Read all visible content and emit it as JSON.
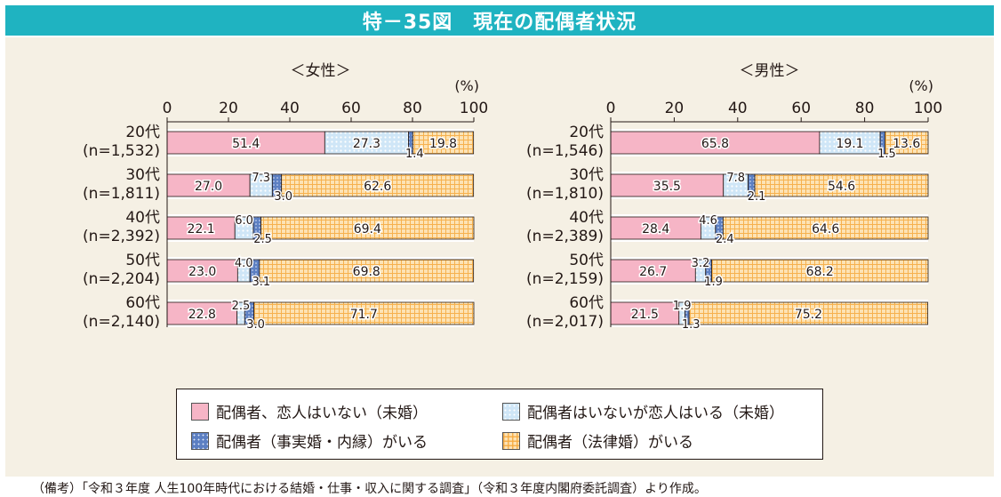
{
  "title": "特－35図　現在の配偶者状況",
  "legend": {
    "single": "配偶者、恋人はいない（未婚）",
    "dating": "配偶者はいないが恋人はいる（未婚）",
    "defacto": "配偶者（事実婚・内縁）がいる",
    "married": "配偶者（法律婚）がいる"
  },
  "source": "（備考）「令和３年度 人生100年時代における結婚・仕事・収入に関する調査」（令和３年度内閣府委託調査）より作成。",
  "colors": {
    "banner": "#1fb3c1",
    "panel": "#f5f0e4",
    "single": "#f6b5c6",
    "dating": "#cfe6f7",
    "defacto": "#5c7fc2",
    "married": "#fde3b5"
  },
  "chart_data": [
    {
      "type": "bar",
      "orientation": "horizontal",
      "stacked": true,
      "title": "＜女性＞",
      "unit": "(%)",
      "xlim": [
        0,
        100
      ],
      "xticks": [
        "0",
        "20",
        "40",
        "60",
        "80",
        "100"
      ],
      "categories": [
        "20代",
        "30代",
        "40代",
        "50代",
        "60代"
      ],
      "n_labels": [
        "(n=1,532)",
        "(n=1,811)",
        "(n=2,392)",
        "(n=2,204)",
        "(n=2,140)"
      ],
      "series": [
        {
          "name": "配偶者、恋人はいない（未婚）",
          "values": [
            51.4,
            27.0,
            22.1,
            23.0,
            22.8
          ]
        },
        {
          "name": "配偶者はいないが恋人はいる（未婚）",
          "values": [
            27.3,
            7.3,
            6.0,
            4.0,
            2.5
          ]
        },
        {
          "name": "配偶者（事実婚・内縁）がいる",
          "values": [
            1.4,
            3.0,
            2.5,
            3.1,
            3.0
          ]
        },
        {
          "name": "配偶者（法律婚）がいる",
          "values": [
            19.8,
            62.6,
            69.4,
            69.8,
            71.7
          ]
        }
      ]
    },
    {
      "type": "bar",
      "orientation": "horizontal",
      "stacked": true,
      "title": "＜男性＞",
      "unit": "(%)",
      "xlim": [
        0,
        100
      ],
      "xticks": [
        "0",
        "20",
        "40",
        "60",
        "80",
        "100"
      ],
      "categories": [
        "20代",
        "30代",
        "40代",
        "50代",
        "60代"
      ],
      "n_labels": [
        "(n=1,546)",
        "(n=1,810)",
        "(n=2,389)",
        "(n=2,159)",
        "(n=2,017)"
      ],
      "series": [
        {
          "name": "配偶者、恋人はいない（未婚）",
          "values": [
            65.8,
            35.5,
            28.4,
            26.7,
            21.5
          ]
        },
        {
          "name": "配偶者はいないが恋人はいる（未婚）",
          "values": [
            19.1,
            7.8,
            4.6,
            3.2,
            1.9
          ]
        },
        {
          "name": "配偶者（事実婚・内縁）がいる",
          "values": [
            1.5,
            2.1,
            2.4,
            1.9,
            1.3
          ]
        },
        {
          "name": "配偶者（法律婚）がいる",
          "values": [
            13.6,
            54.6,
            64.6,
            68.2,
            75.2
          ]
        }
      ]
    }
  ]
}
